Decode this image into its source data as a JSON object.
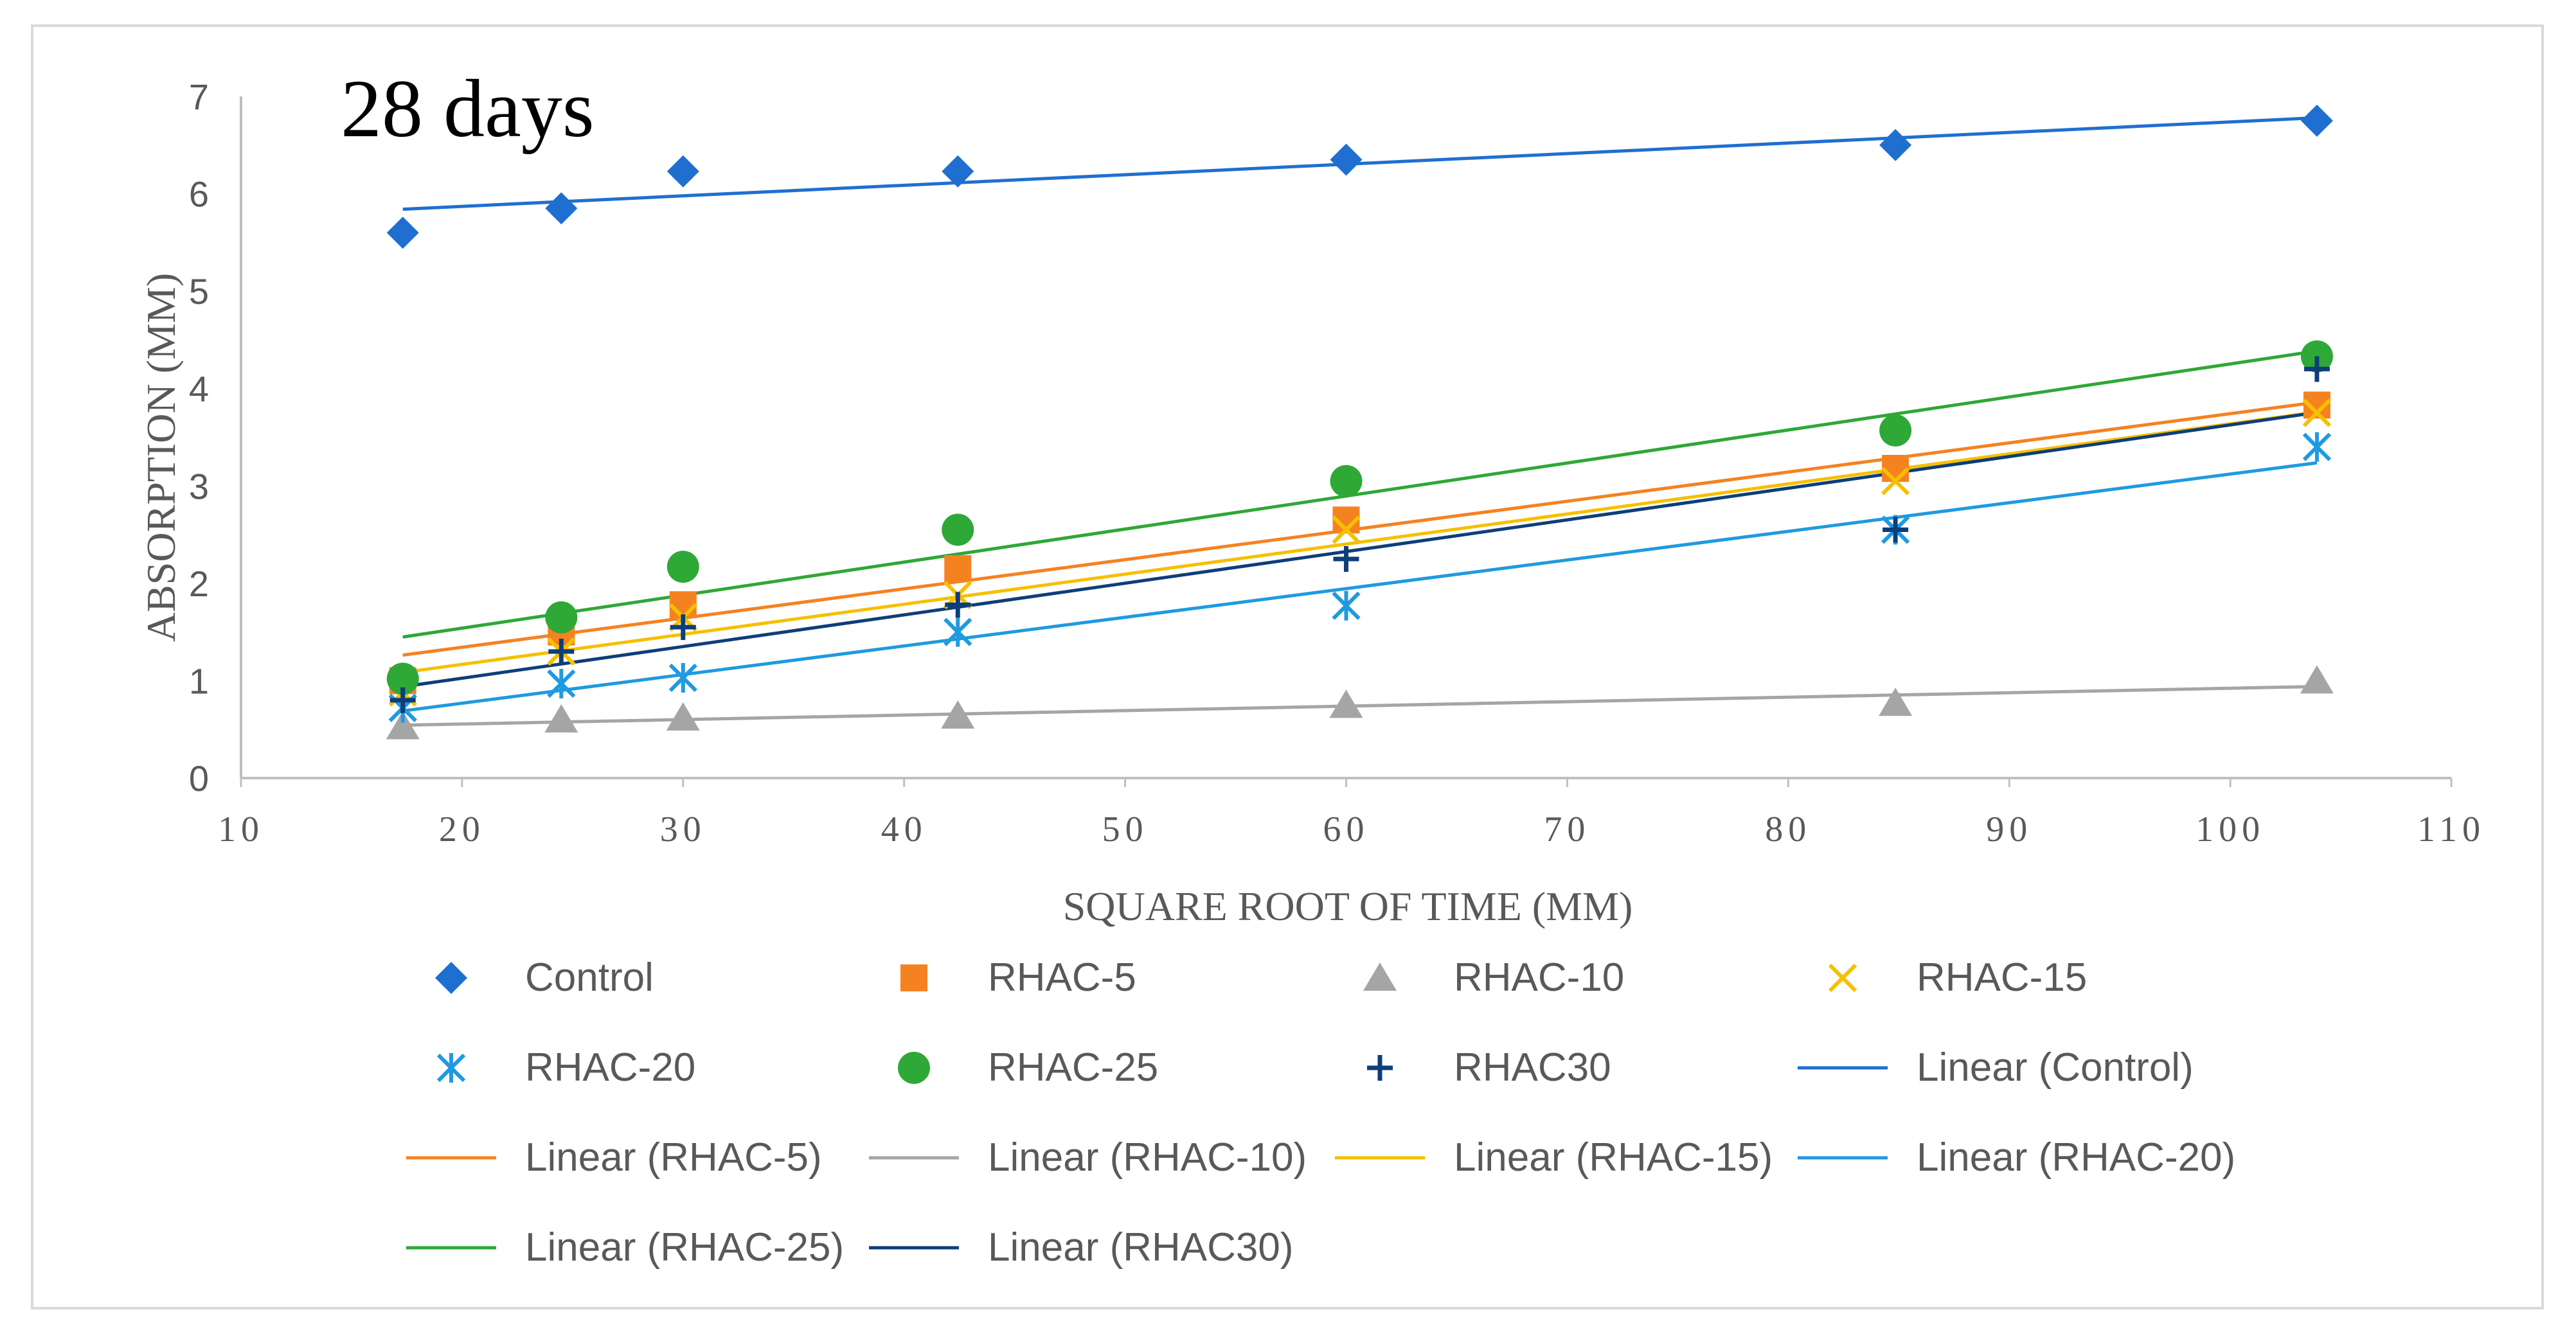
{
  "chart_data": {
    "type": "scatter",
    "title": "28 days",
    "xlabel": "SQUARE ROOT OF TIME (MM)",
    "ylabel": "ABSORPTION (MM)",
    "xlim": [
      10,
      110
    ],
    "ylim": [
      0,
      7
    ],
    "xticks": [
      "10",
      "20",
      "30",
      "40",
      "50",
      "60",
      "70",
      "80",
      "90",
      "100",
      "110"
    ],
    "yticks": [
      "0",
      "1",
      "2",
      "3",
      "4",
      "5",
      "6",
      "7"
    ],
    "x": [
      17.32,
      24.49,
      30.0,
      42.43,
      60.0,
      84.85,
      103.92
    ],
    "series": [
      {
        "name": "Control",
        "marker": "diamond",
        "color": "#1f6fd1",
        "values": [
          5.6,
          5.85,
          6.23,
          6.23,
          6.35,
          6.5,
          6.75
        ]
      },
      {
        "name": "RHAC-5",
        "marker": "square",
        "color": "#f58220",
        "values": [
          1.0,
          1.5,
          1.78,
          2.15,
          2.65,
          3.18,
          3.83
        ]
      },
      {
        "name": "RHAC-10",
        "marker": "triangle",
        "color": "#a5a5a5",
        "values": [
          0.53,
          0.6,
          0.62,
          0.64,
          0.75,
          0.77,
          1.0
        ]
      },
      {
        "name": "RHAC-15",
        "marker": "x",
        "color": "#f5c000",
        "values": [
          0.88,
          1.3,
          1.65,
          1.88,
          2.55,
          3.05,
          3.75
        ]
      },
      {
        "name": "RHAC-20",
        "marker": "star",
        "color": "#1f9ae0",
        "values": [
          0.72,
          0.97,
          1.03,
          1.5,
          1.77,
          2.55,
          3.4
        ]
      },
      {
        "name": "RHAC-25",
        "marker": "circle",
        "color": "#2ea836",
        "values": [
          1.02,
          1.65,
          2.17,
          2.55,
          3.05,
          3.57,
          4.33
        ]
      },
      {
        "name": "RHAC30",
        "marker": "plus",
        "color": "#0d3e7a",
        "values": [
          0.8,
          1.3,
          1.55,
          1.78,
          2.25,
          2.55,
          4.2
        ]
      }
    ],
    "trendlines": [
      {
        "name": "Linear (Control)",
        "color": "#1f6fd1",
        "series": "Control"
      },
      {
        "name": "Linear (RHAC-5)",
        "color": "#f58220",
        "series": "RHAC-5"
      },
      {
        "name": "Linear (RHAC-10)",
        "color": "#a5a5a5",
        "series": "RHAC-10"
      },
      {
        "name": "Linear (RHAC-15)",
        "color": "#f5c000",
        "series": "RHAC-15"
      },
      {
        "name": "Linear (RHAC-20)",
        "color": "#1f9ae0",
        "series": "RHAC-20"
      },
      {
        "name": "Linear (RHAC-25)",
        "color": "#2ea836",
        "series": "RHAC-25"
      },
      {
        "name": "Linear (RHAC30)",
        "color": "#0d3e7a",
        "series": "RHAC30"
      }
    ],
    "legend_position": "bottom",
    "grid": false
  }
}
